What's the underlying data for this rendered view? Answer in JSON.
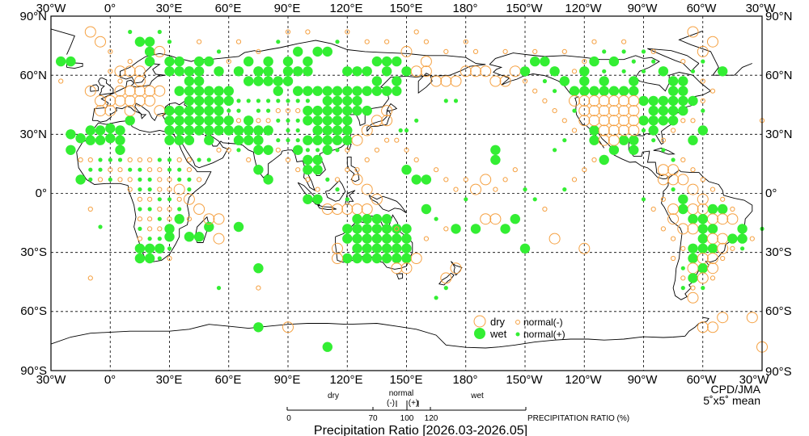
{
  "map": {
    "lon_labels_top": [
      "30°W",
      "0°",
      "30°E",
      "60°E",
      "90°E",
      "120°E",
      "150°E",
      "180°",
      "150°W",
      "120°W",
      "90°W",
      "60°W",
      "30°W"
    ],
    "lon_labels_bottom": [
      "30°W",
      "0°",
      "30°E",
      "60°E",
      "90°E",
      "120°E",
      "150°E",
      "180°",
      "150°W",
      "120°W",
      "90°W",
      "60°W",
      "30°W"
    ],
    "lat_labels": [
      "90°N",
      "60°N",
      "30°N",
      "0°",
      "30°S",
      "60°S",
      "90°S"
    ],
    "credit": "CPD/JMA",
    "grid_note": "5˚x5˚ mean",
    "colors": {
      "dry": "#f5a142",
      "wet": "#33ee33",
      "coast": "#000000",
      "grid": "#000000"
    }
  },
  "legend": {
    "dry": "dry",
    "wet": "wet",
    "normal_minus": "normal(-)",
    "normal_plus": "normal(+)"
  },
  "scale": {
    "dry_label": "dry",
    "normal_label": "normal",
    "minus_label": "(-)",
    "plus_label": "(+)",
    "wet_label": "wet",
    "ticks": [
      "0",
      "70",
      "100",
      "120"
    ],
    "axis_label": "PRECIPITATION RATIO (%)"
  },
  "title": "Precipitation Ratio [2026.03-2026.05]"
}
